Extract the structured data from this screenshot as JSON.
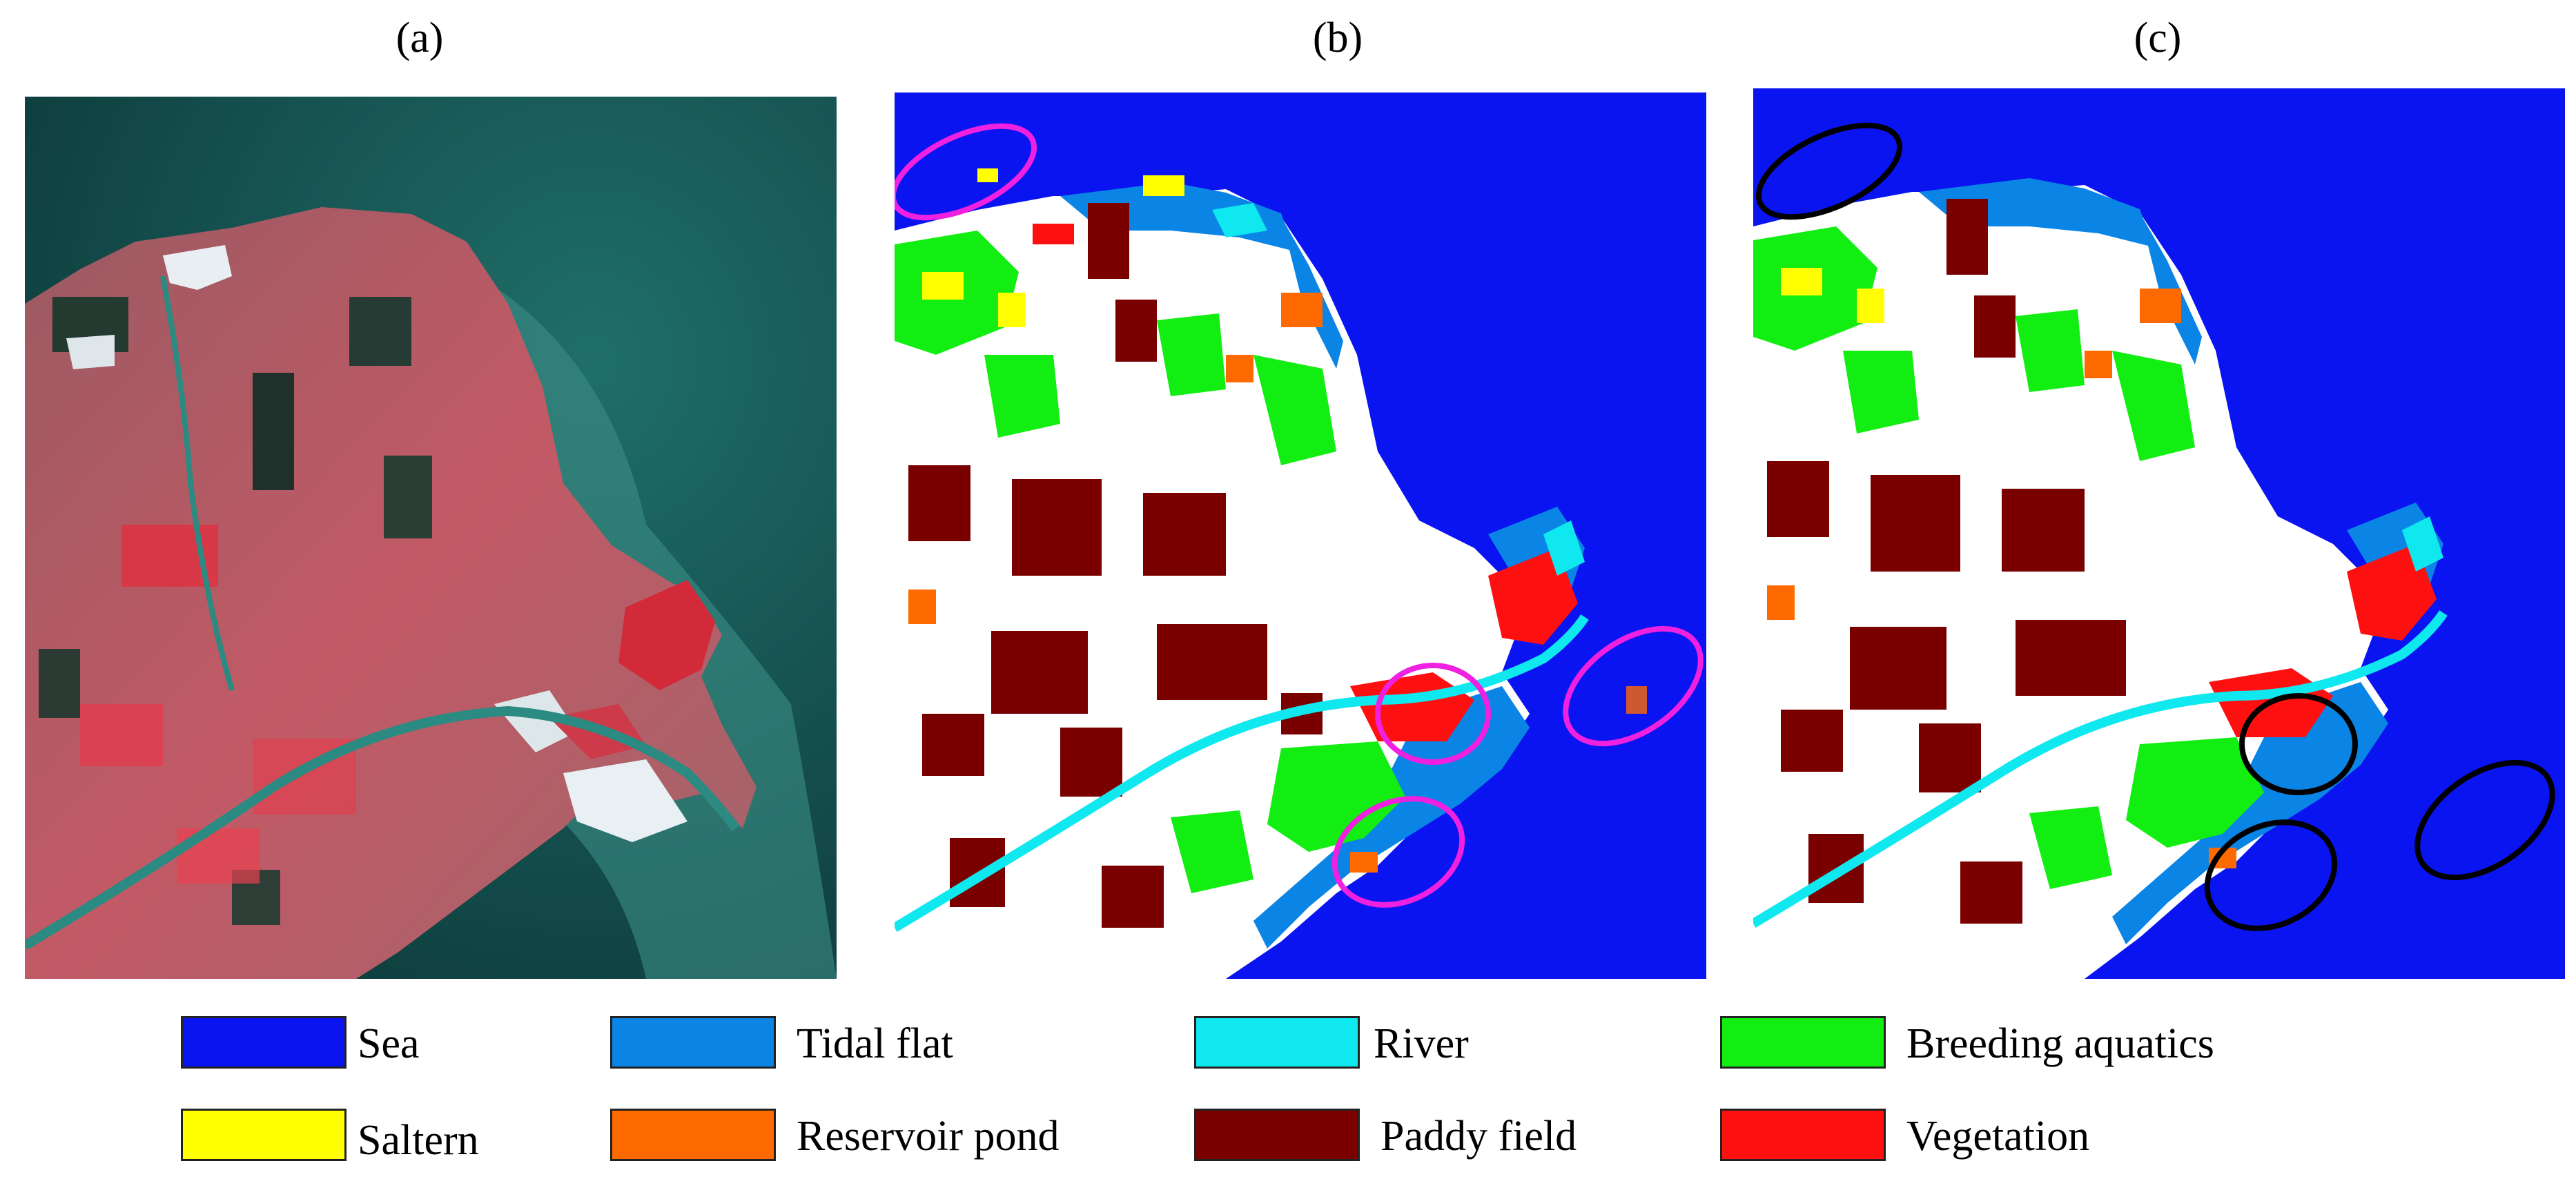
{
  "panels": [
    {
      "label": "(a)",
      "content": "false-color satellite image"
    },
    {
      "label": "(b)",
      "content": "classification map"
    },
    {
      "label": "(c)",
      "content": "classification map"
    }
  ],
  "legend": [
    {
      "label": "Sea",
      "color": "#0a14f0"
    },
    {
      "label": "Tidal flat",
      "color": "#0a85e6"
    },
    {
      "label": "River",
      "color": "#10e8f0"
    },
    {
      "label": "Breeding aquatics",
      "color": "#12ee12"
    },
    {
      "label": "Saltern",
      "color": "#ffff00"
    },
    {
      "label": "Reservoir pond",
      "color": "#ff6a00"
    },
    {
      "label": "Paddy field",
      "color": "#7a0000"
    },
    {
      "label": "Vegetation",
      "color": "#ff1010"
    }
  ],
  "annotation_colors": {
    "panel_b": "#f020e0",
    "panel_c": "#000000"
  }
}
